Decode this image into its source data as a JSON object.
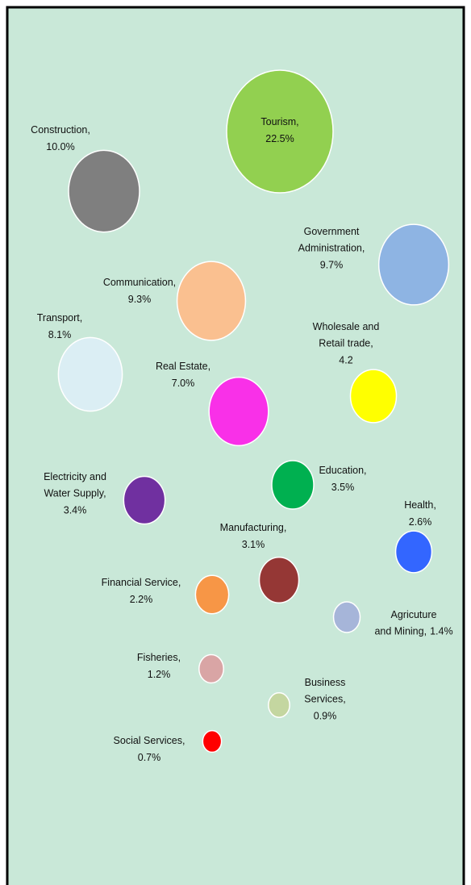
{
  "chart_data": {
    "type": "bubble",
    "categories": [
      [
        "Tourism,"
      ],
      [
        "Construction,"
      ],
      [
        "Government",
        "Administration,"
      ],
      [
        "Communication,"
      ],
      [
        "Transport,"
      ],
      [
        "Wholesale and",
        "Retail trade,"
      ],
      [
        "Real Estate,"
      ],
      [
        "Education,"
      ],
      [
        "Electricity and",
        "Water Supply,"
      ],
      [
        "Health,"
      ],
      [
        "Manufacturing,"
      ],
      [
        "Financial Service,"
      ],
      [
        "Agricuture",
        "and Mining,"
      ],
      [
        "Fisheries,"
      ],
      [
        "Business",
        "Services,"
      ],
      [
        "Social Services,"
      ]
    ],
    "values": [
      22.5,
      10.0,
      9.7,
      9.3,
      8.1,
      4.2,
      7.0,
      3.5,
      3.4,
      2.6,
      3.1,
      2.2,
      1.4,
      1.2,
      0.9,
      0.7
    ],
    "value_labels": [
      "22.5%",
      "10.0%",
      "9.7%",
      "9.3%",
      "8.1%",
      "4.2",
      "7.0%",
      "3.5%",
      "3.4%",
      "2.6%",
      "3.1%",
      "2.2%",
      "1.4%",
      "1.2%",
      "0.9%",
      "0.7%"
    ],
    "colors": [
      "#92d050",
      "#7f7f7f",
      "#8eb4e3",
      "#fac090",
      "#dbeef4",
      "#ffff00",
      "#f930e8",
      "#00b050",
      "#7030a0",
      "#3366ff",
      "#953735",
      "#f79646",
      "#a6b5d9",
      "#d9a5a5",
      "#c4d6a0",
      "#ff0000"
    ]
  }
}
